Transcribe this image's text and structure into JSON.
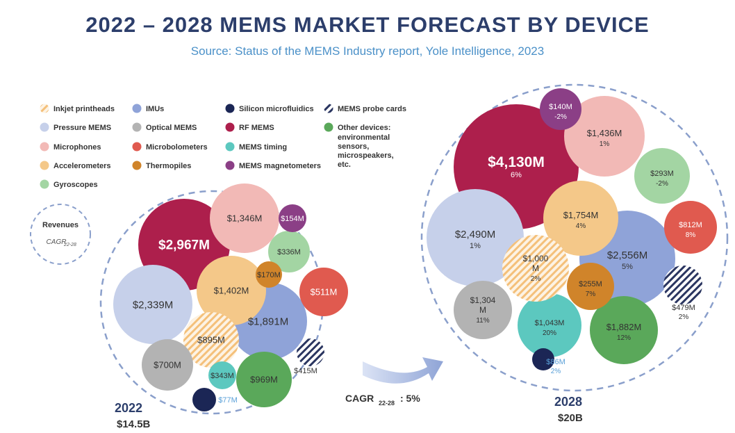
{
  "title": "2022 – 2028 MEMS MARKET FORECAST BY DEVICE",
  "subtitle": "Source: Status of the MEMS Industry report, Yole Intelligence, 2023",
  "colors": {
    "title": "#2c3e6b",
    "subtitle": "#4a90c8",
    "dashed": "#8a9fcb",
    "arrow": "#8fa4d6",
    "text_dark": "#333333",
    "inkjet": "#f4c07a",
    "pressure": "#c6d0ea",
    "microphones": "#f2b9b6",
    "accelerometers": "#f4c889",
    "gyroscopes": "#a3d5a3",
    "imus": "#8fa3d8",
    "optical": "#b3b3b3",
    "microbolometers": "#e05a4f",
    "thermopiles": "#d0842a",
    "silicon": "#1b2655",
    "rf": "#ad1f4c",
    "timing": "#5cc8bf",
    "magnetometers": "#8b3f86",
    "probe": "#2a3560",
    "other": "#5aa85a"
  },
  "legend": {
    "items": [
      {
        "key": "inkjet",
        "label": "Inkjet printheads",
        "pattern": "hatch"
      },
      {
        "key": "pressure",
        "label": "Pressure MEMS"
      },
      {
        "key": "microphones",
        "label": "Microphones"
      },
      {
        "key": "accelerometers",
        "label": "Accelerometers"
      },
      {
        "key": "gyroscopes",
        "label": "Gyroscopes"
      },
      {
        "key": "imus",
        "label": "IMUs"
      },
      {
        "key": "optical",
        "label": "Optical MEMS"
      },
      {
        "key": "microbolometers",
        "label": "Microbolometers"
      },
      {
        "key": "thermopiles",
        "label": "Thermopiles"
      },
      {
        "key": "silicon",
        "label": "Silicon microfluidics"
      },
      {
        "key": "rf",
        "label": "RF MEMS"
      },
      {
        "key": "timing",
        "label": "MEMS timing"
      },
      {
        "key": "magnetometers",
        "label": "MEMS magnetometers"
      },
      {
        "key": "probe",
        "label": "MEMS probe cards",
        "pattern": "stripe"
      },
      {
        "key": "other",
        "label": "Other devices:",
        "extra": [
          "environmental",
          "sensors,",
          "microspeakers,",
          "etc."
        ]
      }
    ],
    "key_box": {
      "line1": "Revenues",
      "line2": "CAGR",
      "sub": "22-28"
    }
  },
  "chart_data": {
    "type": "bubble",
    "title": "2022 – 2028 MEMS MARKET FORECAST BY DEVICE",
    "unit": "US$ million",
    "years": [
      {
        "year": "2022",
        "total": "$14.5B",
        "devices": [
          {
            "key": "rf",
            "label": "$2,967M",
            "value": 2967
          },
          {
            "key": "pressure",
            "label": "$2,339M",
            "value": 2339
          },
          {
            "key": "imus",
            "label": "$1,891M",
            "value": 1891
          },
          {
            "key": "accelerometers",
            "label": "$1,402M",
            "value": 1402
          },
          {
            "key": "microphones",
            "label": "$1,346M",
            "value": 1346
          },
          {
            "key": "other",
            "label": "$969M",
            "value": 969
          },
          {
            "key": "inkjet",
            "label": "$895M",
            "value": 895
          },
          {
            "key": "optical",
            "label": "$700M",
            "value": 700
          },
          {
            "key": "microbolometers",
            "label": "$511M",
            "value": 511
          },
          {
            "key": "probe",
            "label": "$415M",
            "value": 415
          },
          {
            "key": "timing",
            "label": "$343M",
            "value": 343
          },
          {
            "key": "gyroscopes",
            "label": "$336M",
            "value": 336
          },
          {
            "key": "thermopiles",
            "label": "$170M",
            "value": 170
          },
          {
            "key": "magnetometers",
            "label": "$154M",
            "value": 154
          },
          {
            "key": "silicon",
            "label": "$77M",
            "value": 77
          }
        ]
      },
      {
        "year": "2028",
        "total": "$20B",
        "devices": [
          {
            "key": "rf",
            "label": "$4,130M",
            "value": 4130,
            "cagr": "6%"
          },
          {
            "key": "imus",
            "label": "$2,556M",
            "value": 2556,
            "cagr": "5%"
          },
          {
            "key": "pressure",
            "label": "$2,490M",
            "value": 2490,
            "cagr": "1%"
          },
          {
            "key": "other",
            "label": "$1,882M",
            "value": 1882,
            "cagr": "12%"
          },
          {
            "key": "accelerometers",
            "label": "$1,754M",
            "value": 1754,
            "cagr": "4%"
          },
          {
            "key": "microphones",
            "label": "$1,436M",
            "value": 1436,
            "cagr": "1%"
          },
          {
            "key": "optical",
            "label": "$1,304 M",
            "value": 1304,
            "cagr": "11%"
          },
          {
            "key": "timing",
            "label": "$1,043M",
            "value": 1043,
            "cagr": "20%"
          },
          {
            "key": "inkjet",
            "label": "$1,000 M",
            "value": 1000,
            "cagr": "2%"
          },
          {
            "key": "microbolometers",
            "label": "$812M",
            "value": 812,
            "cagr": "8%"
          },
          {
            "key": "probe",
            "label": "$479M",
            "value": 479,
            "cagr": "2%"
          },
          {
            "key": "gyroscopes",
            "label": "$293M",
            "value": 293,
            "cagr": "-2%"
          },
          {
            "key": "thermopiles",
            "label": "$255M",
            "value": 255,
            "cagr": "7%"
          },
          {
            "key": "magnetometers",
            "label": "$140M",
            "value": 140,
            "cagr": "-2%"
          },
          {
            "key": "silicon",
            "label": "$86M",
            "value": 86,
            "cagr": "2%"
          }
        ]
      }
    ],
    "cagr_overall": {
      "label": "CAGR",
      "sub": "22-28",
      "value": "5%"
    }
  }
}
